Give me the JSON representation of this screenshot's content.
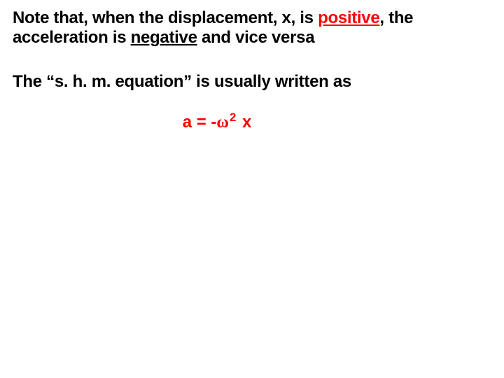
{
  "colors": {
    "background": "#ffffff",
    "text": "#000000",
    "accent": "#ff0000"
  },
  "typography": {
    "family": "Arial",
    "weight": "bold",
    "body_size_pt": 18
  },
  "p1": {
    "t1": "Note that, when the displacement, x, is ",
    "pos": "positive",
    "t2": ", the acceleration is ",
    "neg": "negative",
    "t3": " and vice versa"
  },
  "p2": "The “s. h. m. equation” is usually written as",
  "eq": {
    "lhs": "a = -",
    "omega": "ω",
    "sup": "2",
    "rhs": " x"
  }
}
